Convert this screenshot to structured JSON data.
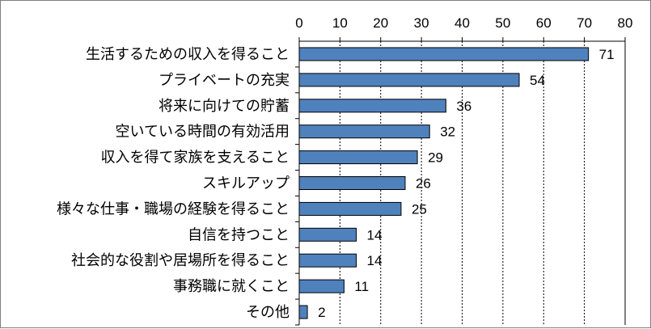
{
  "chart_data": {
    "type": "bar",
    "orientation": "horizontal",
    "categories": [
      "生活するための収入を得ること",
      "プライベートの充実",
      "将来に向けての貯蓄",
      "空いている時間の有効活用",
      "収入を得て家族を支えること",
      "スキルアップ",
      "様々な仕事・職場の経験を得ること",
      "自信を持つこと",
      "社会的な役割や居場所を得ること",
      "事務職に就くこと",
      "その他"
    ],
    "values": [
      71,
      54,
      36,
      32,
      29,
      26,
      25,
      14,
      14,
      11,
      2
    ],
    "xlim": [
      0,
      80
    ],
    "xticks": [
      0,
      10,
      20,
      30,
      40,
      50,
      60,
      70,
      80
    ],
    "axis_position": "top",
    "grid": "vertical dashed",
    "bar_color": "#4f81bd",
    "bar_edge_color": "#000000",
    "data_labels": true
  }
}
